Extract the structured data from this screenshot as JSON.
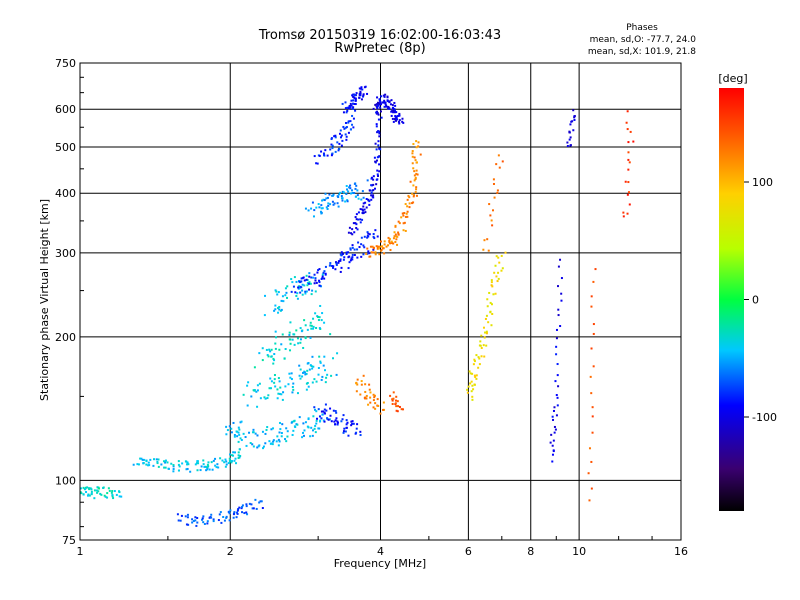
{
  "chart_data": {
    "type": "scatter",
    "title": "Tromsø 20150319 16:02:00-16:03:43",
    "subtitle": "RwPretec (8p)",
    "xlabel": "Frequency [MHz]",
    "ylabel": "Stationary phase Virtual Height [km]",
    "x_scale": "log",
    "y_scale": "log",
    "xlim": [
      1,
      16
    ],
    "ylim": [
      75,
      750
    ],
    "x_ticks": [
      "1",
      "2",
      "4",
      "6",
      "8",
      "10",
      "16"
    ],
    "y_ticks": [
      "75",
      "100",
      "200",
      "300",
      "400",
      "500",
      "600",
      "750"
    ],
    "grid": true,
    "stats": {
      "heading": "Phases",
      "line_o": "mean, sd,O: -77.7, 24.0",
      "line_x": "mean, sd,X: 101.9, 21.8"
    },
    "colorbar": {
      "label": "[deg]",
      "range": [
        -180,
        180
      ],
      "ticks": [
        "100",
        "0",
        "-100"
      ],
      "colormap": "rainbow"
    },
    "colors": {
      "o_mode": "#1030e8",
      "x_mode": "#f0a000",
      "low_cyan": "#20b8e0"
    },
    "traces": [
      {
        "x": [
          1.0,
          1.05,
          1.12,
          1.2
        ],
        "y": [
          95,
          94,
          95,
          93
        ],
        "phase": -30,
        "spread": 0.02
      },
      {
        "x": [
          1.3,
          1.4,
          1.55,
          1.7,
          1.85,
          2.0,
          2.1
        ],
        "y": [
          110,
          108,
          107,
          107,
          108,
          110,
          115
        ],
        "phase": -40,
        "spread": 0.02
      },
      {
        "x": [
          1.6,
          1.75,
          1.95,
          2.1,
          2.3
        ],
        "y": [
          83,
          82,
          84,
          86,
          90
        ],
        "phase": -70,
        "spread": 0.02
      },
      {
        "x": [
          2.0,
          2.15,
          2.3,
          2.5,
          2.7,
          2.9,
          3.1
        ],
        "y": [
          130,
          125,
          122,
          125,
          128,
          130,
          135
        ],
        "phase": -45,
        "spread": 0.04
      },
      {
        "x": [
          2.2,
          2.4,
          2.6,
          2.8,
          3.0,
          3.2
        ],
        "y": [
          150,
          155,
          160,
          165,
          170,
          175
        ],
        "phase": -40,
        "spread": 0.05
      },
      {
        "x": [
          2.3,
          2.5,
          2.7,
          2.9,
          3.1
        ],
        "y": [
          180,
          190,
          200,
          210,
          220
        ],
        "phase": -35,
        "spread": 0.05
      },
      {
        "x": [
          2.4,
          2.6,
          2.8,
          3.0
        ],
        "y": [
          230,
          245,
          255,
          262
        ],
        "phase": -40,
        "spread": 0.04
      },
      {
        "x": [
          2.7,
          2.9,
          3.1,
          3.3,
          3.5,
          3.7,
          3.9
        ],
        "y": [
          250,
          260,
          275,
          285,
          295,
          310,
          330
        ],
        "phase": -85,
        "spread": 0.03
      },
      {
        "x": [
          3.5,
          3.65,
          3.8,
          3.9,
          3.95,
          4.0
        ],
        "y": [
          330,
          360,
          390,
          430,
          500,
          600
        ],
        "phase": -95,
        "spread": 0.015
      },
      {
        "x": [
          3.9,
          4.0,
          4.1,
          4.2,
          4.3,
          4.4
        ],
        "y": [
          600,
          620,
          630,
          600,
          580,
          560
        ],
        "phase": -100,
        "spread": 0.02
      },
      {
        "x": [
          3.8,
          4.0,
          4.2,
          4.4,
          4.6,
          4.7,
          4.75
        ],
        "y": [
          300,
          305,
          315,
          340,
          380,
          440,
          520
        ],
        "phase": 120,
        "spread": 0.02
      },
      {
        "x": [
          2.9,
          3.1,
          3.3,
          3.5,
          3.7
        ],
        "y": [
          370,
          380,
          390,
          400,
          410
        ],
        "phase": -55,
        "spread": 0.03
      },
      {
        "x": [
          3.0,
          3.2,
          3.4,
          3.5
        ],
        "y": [
          470,
          500,
          540,
          580
        ],
        "phase": -80,
        "spread": 0.03
      },
      {
        "x": [
          3.4,
          3.5,
          3.6,
          3.7
        ],
        "y": [
          600,
          620,
          640,
          660
        ],
        "phase": -90,
        "spread": 0.02
      },
      {
        "x": [
          3.0,
          3.2,
          3.4,
          3.6
        ],
        "y": [
          140,
          135,
          130,
          128
        ],
        "phase": -85,
        "spread": 0.03
      },
      {
        "x": [
          3.6,
          3.8,
          4.0
        ],
        "y": [
          160,
          150,
          140
        ],
        "phase": 120,
        "spread": 0.03
      },
      {
        "x": [
          4.2,
          4.4
        ],
        "y": [
          150,
          140
        ],
        "phase": 150,
        "spread": 0.02
      },
      {
        "x": [
          6.0,
          6.2,
          6.5,
          6.7,
          7.0
        ],
        "y": [
          150,
          170,
          200,
          250,
          300
        ],
        "phase": 80,
        "spread": 0.02
      },
      {
        "x": [
          6.5,
          7.0
        ],
        "y": [
          300,
          500
        ],
        "phase": 130,
        "spread": 0.02
      },
      {
        "x": [
          8.8,
          9.0,
          9.2
        ],
        "y": [
          110,
          150,
          300
        ],
        "phase": -95,
        "spread": 0.01
      },
      {
        "x": [
          9.5,
          9.8
        ],
        "y": [
          500,
          600
        ],
        "phase": -100,
        "spread": 0.01
      },
      {
        "x": [
          10.5,
          10.7
        ],
        "y": [
          90,
          300
        ],
        "phase": 140,
        "spread": 0.01
      },
      {
        "x": [
          12.5,
          12.7
        ],
        "y": [
          350,
          600
        ],
        "phase": 160,
        "spread": 0.02
      }
    ]
  }
}
